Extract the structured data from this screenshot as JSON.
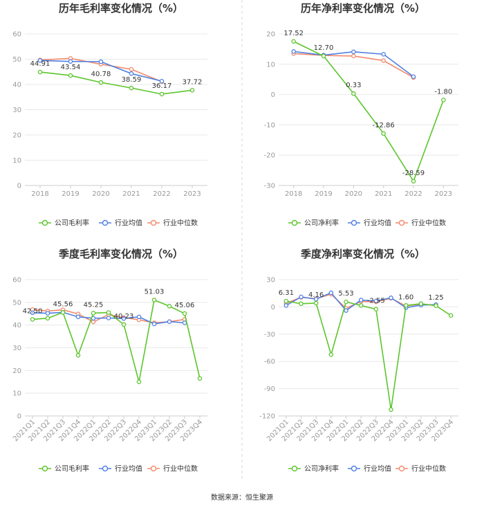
{
  "colors": {
    "company": "#5bc52c",
    "industry_avg": "#4f7fe3",
    "industry_median": "#f28a6b"
  },
  "source": "数据来源：恒生聚源",
  "chart_data": [
    {
      "type": "line",
      "title": "历年毛利率变化情况（%）",
      "categories": [
        "2018",
        "2019",
        "2020",
        "2021",
        "2022",
        "2023"
      ],
      "ylim": [
        0,
        60
      ],
      "yticks": [
        0,
        10,
        20,
        30,
        40,
        50,
        60
      ],
      "series": [
        {
          "name": "公司毛利率",
          "key": "company",
          "values": [
            44.91,
            43.54,
            40.78,
            38.59,
            36.17,
            37.72
          ]
        },
        {
          "name": "行业均值",
          "key": "industry_avg",
          "values": [
            49.5,
            49.1,
            49.0,
            44.3,
            41.3,
            null
          ]
        },
        {
          "name": "行业中位数",
          "key": "industry_median",
          "values": [
            49.7,
            50.3,
            48.0,
            46.0,
            41.1,
            null
          ]
        }
      ],
      "labels": [
        {
          "i": 0,
          "text": "44.91"
        },
        {
          "i": 1,
          "text": "43.54"
        },
        {
          "i": 2,
          "text": "40.78"
        },
        {
          "i": 3,
          "text": "38.59"
        },
        {
          "i": 4,
          "text": "36.17"
        },
        {
          "i": 5,
          "text": "37.72"
        }
      ]
    },
    {
      "type": "line",
      "title": "历年净利率变化情况（%）",
      "categories": [
        "2018",
        "2019",
        "2020",
        "2021",
        "2022",
        "2023"
      ],
      "ylim": [
        -30,
        20
      ],
      "yticks": [
        -30,
        -20,
        -10,
        0,
        10,
        20
      ],
      "series": [
        {
          "name": "公司净利率",
          "key": "company",
          "values": [
            17.52,
            12.7,
            0.33,
            -12.86,
            -28.59,
            -1.8
          ]
        },
        {
          "name": "行业均值",
          "key": "industry_avg",
          "values": [
            14.2,
            13.0,
            14.1,
            13.3,
            5.9,
            null
          ]
        },
        {
          "name": "行业中位数",
          "key": "industry_median",
          "values": [
            13.5,
            12.9,
            12.7,
            11.2,
            5.6,
            null
          ]
        }
      ],
      "labels": [
        {
          "i": 0,
          "text": "17.52"
        },
        {
          "i": 1,
          "text": "12.70"
        },
        {
          "i": 2,
          "text": "0.33"
        },
        {
          "i": 3,
          "text": "-12.86"
        },
        {
          "i": 4,
          "text": "-28.59"
        },
        {
          "i": 5,
          "text": "-1.80"
        }
      ]
    },
    {
      "type": "line",
      "title": "季度毛利率变化情况（%）",
      "categories": [
        "2021Q1",
        "2021Q2",
        "2021Q3",
        "2021Q4",
        "2022Q1",
        "2022Q2",
        "2022Q3",
        "2022Q4",
        "2023Q1",
        "2023Q2",
        "2023Q3",
        "2023Q4"
      ],
      "ylim": [
        0,
        60
      ],
      "yticks": [
        0,
        10,
        20,
        30,
        40,
        50,
        60
      ],
      "series": [
        {
          "name": "公司毛利率",
          "key": "company",
          "values": [
            42.5,
            43.0,
            45.56,
            26.7,
            45.25,
            45.5,
            40.23,
            15.0,
            51.03,
            48.3,
            45.06,
            16.5
          ]
        },
        {
          "name": "行业均值",
          "key": "industry_avg",
          "values": [
            45.4,
            45.2,
            45.6,
            43.6,
            43.0,
            43.1,
            42.9,
            43.6,
            40.5,
            41.5,
            41.0,
            null
          ]
        },
        {
          "name": "行业中位数",
          "key": "industry_median",
          "values": [
            46.8,
            46.2,
            46.7,
            44.9,
            41.4,
            44.6,
            43.3,
            42.3,
            41.0,
            41.5,
            42.5,
            null
          ]
        }
      ],
      "labels": [
        {
          "i": 0,
          "text": "42.50"
        },
        {
          "i": 2,
          "text": "45.56"
        },
        {
          "i": 4,
          "text": "45.25"
        },
        {
          "i": 6,
          "text": "40.23"
        },
        {
          "i": 8,
          "text": "51.03"
        },
        {
          "i": 10,
          "text": "45.06"
        }
      ]
    },
    {
      "type": "line",
      "title": "季度净利率变化情况（%）",
      "categories": [
        "2021Q1",
        "2021Q2",
        "2021Q3",
        "2021Q4",
        "2022Q1",
        "2022Q2",
        "2022Q3",
        "2022Q4",
        "2023Q1",
        "2023Q2",
        "2023Q3",
        "2023Q4"
      ],
      "ylim": [
        -120,
        30
      ],
      "yticks": [
        -120,
        -90,
        -60,
        -30,
        0,
        30
      ],
      "series": [
        {
          "name": "公司净利率",
          "key": "company",
          "values": [
            6.31,
            3.5,
            4.16,
            -52.5,
            5.53,
            1.5,
            -2.55,
            -113.0,
            1.6,
            3.5,
            1.25,
            -9.5
          ]
        },
        {
          "name": "行业均值",
          "key": "industry_avg",
          "values": [
            1.5,
            11.0,
            8.5,
            15.5,
            -4.0,
            7.5,
            6.5,
            10.0,
            -1.0,
            2.0,
            2.5,
            null
          ]
        },
        {
          "name": "行业中位数",
          "key": "industry_median",
          "values": [
            4.0,
            10.5,
            9.0,
            14.0,
            -1.5,
            6.0,
            5.5,
            9.5,
            1.0,
            3.0,
            2.0,
            null
          ]
        }
      ],
      "labels": [
        {
          "i": 0,
          "text": "6.31"
        },
        {
          "i": 2,
          "text": "4.16"
        },
        {
          "i": 4,
          "text": "5.53"
        },
        {
          "i": 6,
          "text": "-2.55"
        },
        {
          "i": 8,
          "text": "1.60"
        },
        {
          "i": 10,
          "text": "1.25"
        }
      ]
    }
  ]
}
